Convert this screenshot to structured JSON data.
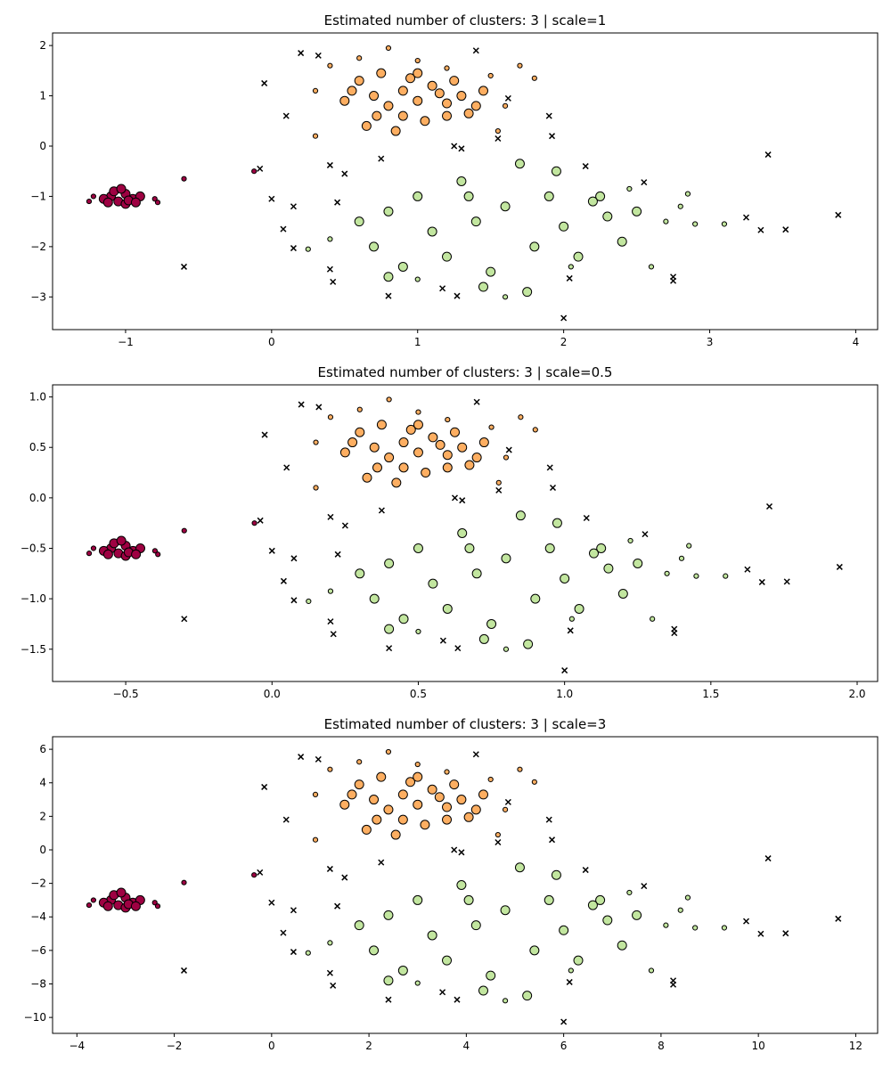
{
  "chart_data": [
    {
      "type": "scatter",
      "title": "Estimated number of clusters: 3 | scale=1",
      "xlim": [
        -1.5,
        4.15
      ],
      "ylim": [
        -3.65,
        2.25
      ],
      "xticks": [
        {
          "value": -1,
          "label": "−1"
        },
        0,
        1,
        2,
        3,
        4
      ],
      "yticks": [
        {
          "value": -3,
          "label": "−3"
        },
        {
          "value": -2,
          "label": "−2"
        },
        {
          "value": -1,
          "label": "−1"
        },
        0,
        1,
        2
      ],
      "series": [
        {
          "color": "#9e0142",
          "marker": "o",
          "x": [
            -1.1,
            -1.05,
            -1,
            -0.95,
            -1.15,
            -1,
            -0.9,
            -1.08,
            -0.98,
            -1.12,
            -0.93,
            -1.03
          ],
          "y": [
            -1,
            -1.1,
            -0.95,
            -1.05,
            -1.05,
            -1.15,
            -1,
            -0.9,
            -1.08,
            -1.12,
            -1.12,
            -0.85
          ]
        },
        {
          "color": "#9e0142",
          "marker": ".",
          "x": [
            -1.25,
            -0.8,
            -0.78,
            -1.22,
            -0.6,
            -0.12
          ],
          "y": [
            -1.1,
            -1.05,
            -1.12,
            -1,
            -0.65,
            -0.5
          ]
        },
        {
          "color": "#fdae61",
          "marker": "o",
          "x": [
            0.6,
            0.7,
            0.8,
            0.9,
            1,
            1.1,
            1.2,
            1.3,
            1.4,
            0.55,
            0.65,
            0.75,
            0.85,
            0.95,
            1.05,
            1.15,
            1.25,
            1.35,
            1.45,
            0.5,
            0.9,
            1,
            1.2,
            0.72
          ],
          "y": [
            1.3,
            1,
            0.8,
            1.1,
            0.9,
            1.2,
            0.6,
            1,
            0.8,
            1.1,
            0.4,
            1.45,
            0.3,
            1.35,
            0.5,
            1.05,
            1.3,
            0.65,
            1.1,
            0.9,
            0.6,
            1.45,
            0.85,
            0.6
          ]
        },
        {
          "color": "#fdae61",
          "marker": ".",
          "x": [
            0.3,
            0.4,
            0.6,
            0.8,
            1,
            1.2,
            1.5,
            1.6,
            1.7,
            1.8,
            0.3,
            1.55
          ],
          "y": [
            1.1,
            1.6,
            1.75,
            1.95,
            1.7,
            1.55,
            1.4,
            0.8,
            1.6,
            1.35,
            0.2,
            0.3
          ]
        },
        {
          "color": "#c2e69f",
          "marker": "o",
          "x": [
            0.6,
            0.7,
            0.8,
            0.9,
            1,
            1.1,
            1.2,
            1.3,
            1.4,
            1.5,
            1.6,
            1.7,
            1.8,
            1.9,
            2,
            2.1,
            2.2,
            2.3,
            2.4,
            2.5,
            1.45,
            1.75,
            0.8,
            1.95,
            2.25,
            1.35
          ],
          "y": [
            -1.5,
            -2,
            -1.3,
            -2.4,
            -1,
            -1.7,
            -2.2,
            -0.7,
            -1.5,
            -2.5,
            -1.2,
            -0.35,
            -2,
            -1,
            -1.6,
            -2.2,
            -1.1,
            -1.4,
            -1.9,
            -1.3,
            -2.8,
            -2.9,
            -2.6,
            -0.5,
            -1,
            -1
          ]
        },
        {
          "color": "#c2e69f",
          "marker": ".",
          "x": [
            0.4,
            0.25,
            2.6,
            2.7,
            2.8,
            2.9,
            3.1,
            2.05,
            1,
            2.85,
            2.45,
            1.6
          ],
          "y": [
            -1.85,
            -2.05,
            -2.4,
            -1.5,
            -1.2,
            -1.55,
            -1.55,
            -2.4,
            -2.65,
            -0.95,
            -0.85,
            -3
          ]
        },
        {
          "color": "#000000",
          "marker": "x",
          "x": [
            0.2,
            0.32,
            1.4,
            -0.05,
            0.1,
            1.62,
            1.9,
            1.92,
            1.55,
            1.25,
            1.3,
            0.75,
            0.4,
            0.5,
            -0.08,
            0,
            0.15,
            0.45,
            0.08,
            0.15,
            0.4,
            0.42,
            0.8,
            1.17,
            1.27,
            2,
            2.04,
            2.15,
            2.55,
            2.75,
            2.75,
            3.25,
            3.35,
            3.52,
            3.4,
            3.88,
            -0.6
          ],
          "y": [
            1.85,
            1.8,
            1.9,
            1.25,
            0.6,
            0.95,
            0.6,
            0.2,
            0.15,
            0,
            -0.05,
            -0.25,
            -0.38,
            -0.55,
            -0.45,
            -1.05,
            -1.2,
            -1.12,
            -1.65,
            -2.03,
            -2.45,
            -2.7,
            -2.98,
            -2.83,
            -2.98,
            -3.42,
            -2.63,
            -0.4,
            -0.72,
            -2.6,
            -2.68,
            -1.42,
            -1.67,
            -1.66,
            -0.17,
            -1.37,
            -2.4
          ]
        }
      ]
    },
    {
      "type": "scatter",
      "title": "Estimated number of clusters: 3 | scale=0.5",
      "xlim": [
        -0.75,
        2.07
      ],
      "ylim": [
        -1.82,
        1.12
      ],
      "xticks": [
        {
          "value": -0.5,
          "label": "−0.5"
        },
        {
          "value": 0,
          "label": "0.0"
        },
        0.5,
        {
          "value": 1,
          "label": "1.0"
        },
        1.5,
        {
          "value": 2,
          "label": "2.0"
        }
      ],
      "yticks": [
        {
          "value": -1.5,
          "label": "−1.5"
        },
        {
          "value": -1,
          "label": "−1.0"
        },
        {
          "value": -0.5,
          "label": "−0.5"
        },
        {
          "value": 0,
          "label": "0.0"
        },
        0.5,
        {
          "value": 1,
          "label": "1.0"
        }
      ],
      "series": [
        {
          "color": "#9e0142",
          "marker": "o",
          "x": [
            -0.55,
            -0.525,
            -0.5,
            -0.475,
            -0.575,
            -0.5,
            -0.45,
            -0.54,
            -0.49,
            -0.56,
            -0.465,
            -0.515
          ],
          "y": [
            -0.5,
            -0.55,
            -0.475,
            -0.525,
            -0.525,
            -0.575,
            -0.5,
            -0.45,
            -0.54,
            -0.56,
            -0.56,
            -0.425
          ]
        },
        {
          "color": "#9e0142",
          "marker": ".",
          "x": [
            -0.625,
            -0.4,
            -0.39,
            -0.61,
            -0.3,
            -0.06
          ],
          "y": [
            -0.55,
            -0.525,
            -0.56,
            -0.5,
            -0.325,
            -0.25
          ]
        },
        {
          "color": "#fdae61",
          "marker": "o",
          "x": [
            0.3,
            0.35,
            0.4,
            0.45,
            0.5,
            0.55,
            0.6,
            0.65,
            0.7,
            0.275,
            0.325,
            0.375,
            0.425,
            0.475,
            0.525,
            0.575,
            0.625,
            0.675,
            0.725,
            0.25,
            0.45,
            0.5,
            0.6,
            0.36
          ],
          "y": [
            0.65,
            0.5,
            0.4,
            0.55,
            0.45,
            0.6,
            0.3,
            0.5,
            0.4,
            0.55,
            0.2,
            0.725,
            0.15,
            0.675,
            0.25,
            0.525,
            0.65,
            0.325,
            0.55,
            0.45,
            0.3,
            0.725,
            0.425,
            0.3
          ]
        },
        {
          "color": "#fdae61",
          "marker": ".",
          "x": [
            0.15,
            0.2,
            0.3,
            0.4,
            0.5,
            0.6,
            0.75,
            0.8,
            0.85,
            0.9,
            0.15,
            0.775
          ],
          "y": [
            0.55,
            0.8,
            0.875,
            0.975,
            0.85,
            0.775,
            0.7,
            0.4,
            0.8,
            0.675,
            0.1,
            0.15
          ]
        },
        {
          "color": "#c2e69f",
          "marker": "o",
          "x": [
            0.3,
            0.35,
            0.4,
            0.45,
            0.5,
            0.55,
            0.6,
            0.65,
            0.7,
            0.75,
            0.8,
            0.85,
            0.9,
            0.95,
            1,
            1.05,
            1.1,
            1.15,
            1.2,
            1.25,
            0.725,
            0.875,
            0.4,
            0.975,
            1.125,
            0.675
          ],
          "y": [
            -0.75,
            -1,
            -0.65,
            -1.2,
            -0.5,
            -0.85,
            -1.1,
            -0.35,
            -0.75,
            -1.25,
            -0.6,
            -0.175,
            -1,
            -0.5,
            -0.8,
            -1.1,
            -0.55,
            -0.7,
            -0.95,
            -0.65,
            -1.4,
            -1.45,
            -1.3,
            -0.25,
            -0.5,
            -0.5
          ]
        },
        {
          "color": "#c2e69f",
          "marker": ".",
          "x": [
            0.2,
            0.125,
            1.3,
            1.35,
            1.4,
            1.45,
            1.55,
            1.025,
            0.5,
            1.425,
            1.225,
            0.8
          ],
          "y": [
            -0.925,
            -1.025,
            -1.2,
            -0.75,
            -0.6,
            -0.775,
            -0.775,
            -1.2,
            -1.325,
            -0.475,
            -0.425,
            -1.5
          ]
        },
        {
          "color": "#000000",
          "marker": "x",
          "x": [
            0.1,
            0.16,
            0.7,
            -0.025,
            0.05,
            0.81,
            0.95,
            0.96,
            0.775,
            0.625,
            0.65,
            0.375,
            0.2,
            0.25,
            -0.04,
            0,
            0.075,
            0.225,
            0.04,
            0.075,
            0.2,
            0.21,
            0.4,
            0.585,
            0.635,
            1,
            1.02,
            1.075,
            1.275,
            1.375,
            1.375,
            1.625,
            1.675,
            1.76,
            1.7,
            1.94,
            -0.3
          ],
          "y": [
            0.925,
            0.9,
            0.95,
            0.625,
            0.3,
            0.475,
            0.3,
            0.1,
            0.075,
            0,
            -0.025,
            -0.125,
            -0.19,
            -0.275,
            -0.225,
            -0.525,
            -0.6,
            -0.56,
            -0.825,
            -1.015,
            -1.225,
            -1.35,
            -1.49,
            -1.415,
            -1.49,
            -1.71,
            -1.315,
            -0.2,
            -0.36,
            -1.3,
            -1.34,
            -0.71,
            -0.835,
            -0.83,
            -0.085,
            -0.685,
            -1.2
          ]
        }
      ]
    },
    {
      "type": "scatter",
      "title": "Estimated number of clusters: 3 | scale=3",
      "xlim": [
        -4.5,
        12.45
      ],
      "ylim": [
        -10.95,
        6.75
      ],
      "xticks": [
        {
          "value": -4,
          "label": "−4"
        },
        {
          "value": -2,
          "label": "−2"
        },
        0,
        2,
        4,
        6,
        8,
        10,
        12
      ],
      "yticks": [
        {
          "value": -10,
          "label": "−10"
        },
        {
          "value": -8,
          "label": "−8"
        },
        {
          "value": -6,
          "label": "−6"
        },
        {
          "value": -4,
          "label": "−4"
        },
        {
          "value": -2,
          "label": "−2"
        },
        0,
        2,
        4,
        6
      ],
      "series": [
        {
          "color": "#9e0142",
          "marker": "o",
          "x": [
            -3.3,
            -3.15,
            -3,
            -2.85,
            -3.45,
            -3,
            -2.7,
            -3.24,
            -2.94,
            -3.36,
            -2.79,
            -3.09
          ],
          "y": [
            -3,
            -3.3,
            -2.85,
            -3.15,
            -3.15,
            -3.45,
            -3,
            -2.7,
            -3.24,
            -3.36,
            -3.36,
            -2.55
          ]
        },
        {
          "color": "#9e0142",
          "marker": ".",
          "x": [
            -3.75,
            -2.4,
            -2.34,
            -3.66,
            -1.8,
            -0.36
          ],
          "y": [
            -3.3,
            -3.15,
            -3.36,
            -3,
            -1.95,
            -1.5
          ]
        },
        {
          "color": "#fdae61",
          "marker": "o",
          "x": [
            1.8,
            2.1,
            2.4,
            2.7,
            3,
            3.3,
            3.6,
            3.9,
            4.2,
            1.65,
            1.95,
            2.25,
            2.55,
            2.85,
            3.15,
            3.45,
            3.75,
            4.05,
            4.35,
            1.5,
            2.7,
            3,
            3.6,
            2.16
          ],
          "y": [
            3.9,
            3,
            2.4,
            3.3,
            2.7,
            3.6,
            1.8,
            3,
            2.4,
            3.3,
            1.2,
            4.35,
            0.9,
            4.05,
            1.5,
            3.15,
            3.9,
            1.95,
            3.3,
            2.7,
            1.8,
            4.35,
            2.55,
            1.8
          ]
        },
        {
          "color": "#fdae61",
          "marker": ".",
          "x": [
            0.9,
            1.2,
            1.8,
            2.4,
            3,
            3.6,
            4.5,
            4.8,
            5.1,
            5.4,
            0.9,
            4.65
          ],
          "y": [
            3.3,
            4.8,
            5.25,
            5.85,
            5.1,
            4.65,
            4.2,
            2.4,
            4.8,
            4.05,
            0.6,
            0.9
          ]
        },
        {
          "color": "#c2e69f",
          "marker": "o",
          "x": [
            1.8,
            2.1,
            2.4,
            2.7,
            3,
            3.3,
            3.6,
            3.9,
            4.2,
            4.5,
            4.8,
            5.1,
            5.4,
            5.7,
            6,
            6.3,
            6.6,
            6.9,
            7.2,
            7.5,
            4.35,
            5.25,
            2.4,
            5.85,
            6.75,
            4.05
          ],
          "y": [
            -4.5,
            -6,
            -3.9,
            -7.2,
            -3,
            -5.1,
            -6.6,
            -2.1,
            -4.5,
            -7.5,
            -3.6,
            -1.05,
            -6,
            -3,
            -4.8,
            -6.6,
            -3.3,
            -4.2,
            -5.7,
            -3.9,
            -8.4,
            -8.7,
            -7.8,
            -1.5,
            -3,
            -3
          ]
        },
        {
          "color": "#c2e69f",
          "marker": ".",
          "x": [
            1.2,
            0.75,
            7.8,
            8.1,
            8.4,
            8.7,
            9.3,
            6.15,
            3,
            8.55,
            7.35,
            4.8
          ],
          "y": [
            -5.55,
            -6.15,
            -7.2,
            -4.5,
            -3.6,
            -4.65,
            -4.65,
            -7.2,
            -7.95,
            -2.85,
            -2.55,
            -9
          ]
        },
        {
          "color": "#000000",
          "marker": "x",
          "x": [
            0.6,
            0.96,
            4.2,
            -0.15,
            0.3,
            4.86,
            5.7,
            5.76,
            4.65,
            3.75,
            3.9,
            2.25,
            1.2,
            1.5,
            -0.24,
            0,
            0.45,
            1.35,
            0.24,
            0.45,
            1.2,
            1.26,
            2.4,
            3.51,
            3.81,
            6,
            6.12,
            6.45,
            7.65,
            8.25,
            8.25,
            9.75,
            10.05,
            10.56,
            10.2,
            11.64,
            -1.8
          ],
          "y": [
            5.55,
            5.4,
            5.7,
            3.75,
            1.8,
            2.85,
            1.8,
            0.6,
            0.45,
            0,
            -0.15,
            -0.75,
            -1.14,
            -1.65,
            -1.35,
            -3.15,
            -3.6,
            -3.36,
            -4.95,
            -6.09,
            -7.35,
            -8.1,
            -8.94,
            -8.49,
            -8.94,
            -10.26,
            -7.89,
            -1.2,
            -2.16,
            -7.8,
            -8.04,
            -4.26,
            -5.01,
            -4.98,
            -0.51,
            -4.11,
            -7.2
          ]
        }
      ]
    }
  ]
}
